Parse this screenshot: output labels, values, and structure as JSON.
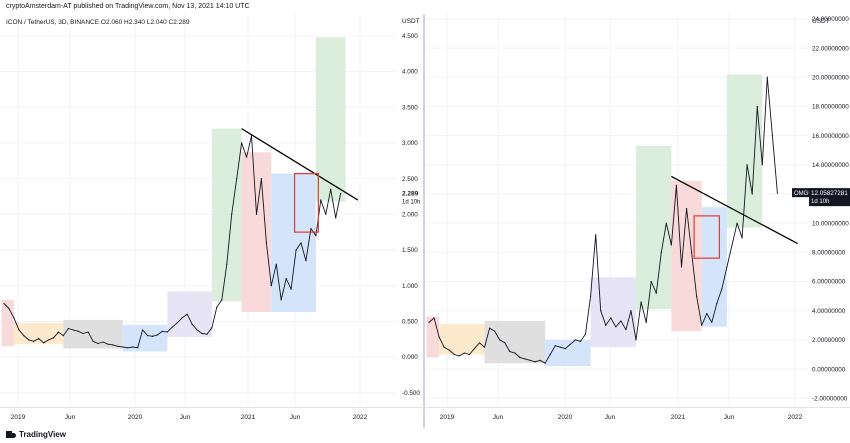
{
  "header": {
    "text": "cryptoAmsterdam-AT published on TradingView.com, Nov 13, 2021 14:10 UTC"
  },
  "footer": {
    "brand": "TradingView"
  },
  "colors": {
    "line": "#131722",
    "grid": "#f0f3fa",
    "divider": "#d1d4dc",
    "orange": "#fde6c4",
    "gray": "#d9d9d9",
    "blue": "#cde0fa",
    "purple": "#e3dff5",
    "green": "#d4ebd5",
    "red": "#f8d3d3",
    "highlight": "#e53935",
    "trend": "#000000"
  },
  "chart_data": [
    {
      "type": "line",
      "title": "ICON / TetherUS, 3D, BINANCE",
      "ohlc": {
        "O": "2.060",
        "H": "2.340",
        "L": "2.040",
        "C": "2.289"
      },
      "currency": "USDT",
      "ylim": [
        -0.7,
        4.75
      ],
      "yticks": [
        "4.500",
        "4.000",
        "3.500",
        "3.000",
        "2.500",
        "2.000",
        "1.500",
        "1.000",
        "0.500",
        "0.000",
        "-0.500"
      ],
      "xticks": [
        "2019",
        "Jun",
        "2020",
        "Jun",
        "2021",
        "Jun",
        "2022"
      ],
      "last_price": {
        "value": "2.289",
        "countdown": "1d 10h"
      },
      "series": [
        {
          "values": [
            [
              0,
              0.75
            ],
            [
              1,
              0.68
            ],
            [
              2,
              0.55
            ],
            [
              3,
              0.38
            ],
            [
              4,
              0.3
            ],
            [
              5,
              0.24
            ],
            [
              6,
              0.22
            ],
            [
              7,
              0.26
            ],
            [
              8,
              0.2
            ],
            [
              9,
              0.24
            ],
            [
              10,
              0.27
            ],
            [
              11,
              0.35
            ],
            [
              12,
              0.3
            ],
            [
              13,
              0.4
            ],
            [
              14,
              0.38
            ],
            [
              15,
              0.36
            ],
            [
              16,
              0.33
            ],
            [
              17,
              0.35
            ],
            [
              18,
              0.22
            ],
            [
              19,
              0.19
            ],
            [
              20,
              0.21
            ],
            [
              21,
              0.18
            ],
            [
              22,
              0.17
            ],
            [
              23,
              0.15
            ],
            [
              24,
              0.14
            ],
            [
              25,
              0.13
            ],
            [
              26,
              0.14
            ],
            [
              27,
              0.13
            ],
            [
              28,
              0.38
            ],
            [
              29,
              0.3
            ],
            [
              30,
              0.29
            ],
            [
              31,
              0.31
            ],
            [
              32,
              0.36
            ],
            [
              33,
              0.35
            ],
            [
              34,
              0.42
            ],
            [
              35,
              0.48
            ],
            [
              36,
              0.55
            ],
            [
              37,
              0.6
            ],
            [
              38,
              0.46
            ],
            [
              39,
              0.38
            ],
            [
              40,
              0.33
            ],
            [
              41,
              0.32
            ],
            [
              42,
              0.41
            ],
            [
              43,
              0.7
            ],
            [
              44,
              0.8
            ],
            [
              45,
              1.3
            ],
            [
              46,
              2.0
            ],
            [
              47,
              2.5
            ],
            [
              48,
              3.0
            ],
            [
              49,
              2.8
            ],
            [
              50,
              3.1
            ],
            [
              51,
              2.0
            ],
            [
              52,
              2.5
            ],
            [
              53,
              1.6
            ],
            [
              54,
              1.0
            ],
            [
              55,
              1.3
            ],
            [
              56,
              0.8
            ],
            [
              57,
              1.1
            ],
            [
              58,
              0.95
            ],
            [
              59,
              1.5
            ],
            [
              60,
              1.6
            ],
            [
              61,
              1.35
            ],
            [
              62,
              1.8
            ],
            [
              63,
              1.7
            ],
            [
              64,
              2.2
            ],
            [
              65,
              2.0
            ],
            [
              66,
              2.35
            ],
            [
              67,
              1.95
            ],
            [
              68,
              2.29
            ]
          ]
        }
      ],
      "trendline": [
        [
          48,
          3.2
        ],
        [
          71.5,
          2.2
        ]
      ],
      "zones": [
        {
          "x": [
            -0.5,
            2
          ],
          "y": [
            0.15,
            0.8
          ],
          "color": "red"
        },
        {
          "x": [
            2,
            12
          ],
          "y": [
            0.18,
            0.48
          ],
          "color": "orange"
        },
        {
          "x": [
            12,
            24
          ],
          "y": [
            0.12,
            0.52
          ],
          "color": "gray"
        },
        {
          "x": [
            24,
            33
          ],
          "y": [
            0.08,
            0.45
          ],
          "color": "blue"
        },
        {
          "x": [
            33,
            42
          ],
          "y": [
            0.28,
            0.92
          ],
          "color": "purple"
        },
        {
          "x": [
            42,
            48
          ],
          "y": [
            0.78,
            3.2
          ],
          "color": "green"
        },
        {
          "x": [
            48,
            54
          ],
          "y": [
            0.63,
            2.87
          ],
          "color": "red"
        },
        {
          "x": [
            54,
            63
          ],
          "y": [
            0.63,
            2.57
          ],
          "color": "blue"
        },
        {
          "x": [
            63,
            69
          ],
          "y": [
            2.18,
            4.48
          ],
          "color": "green"
        }
      ],
      "highlight_box": {
        "x": [
          58.7,
          63.5
        ],
        "y": [
          1.75,
          2.57
        ]
      }
    },
    {
      "type": "line",
      "title": "",
      "currency": "USDT",
      "ylim": [
        -2.6,
        24.2
      ],
      "yticks": [
        "24.00000000",
        "22.00000000",
        "20.00000000",
        "18.00000000",
        "16.00000000",
        "14.00000000",
        "12.00000000",
        "10.00000000",
        "8.00000000",
        "6.00000000",
        "4.00000000",
        "2.00000000",
        "0.00000000",
        "-2.00000000"
      ],
      "xticks": [
        "2019",
        "Jun",
        "2020",
        "Jun",
        "2021",
        "Jun",
        "2022"
      ],
      "last_price": {
        "value": "12.05827281",
        "symbol": "OMGUSDT",
        "countdown": "1d 10h"
      },
      "series": [
        {
          "values": [
            [
              0,
              3.2
            ],
            [
              1,
              3.5
            ],
            [
              2,
              2.2
            ],
            [
              3,
              1.5
            ],
            [
              4,
              1.3
            ],
            [
              5,
              1.0
            ],
            [
              6,
              0.9
            ],
            [
              7,
              1.1
            ],
            [
              8,
              1.0
            ],
            [
              9,
              1.4
            ],
            [
              10,
              1.8
            ],
            [
              11,
              1.5
            ],
            [
              12,
              2.8
            ],
            [
              13,
              2.6
            ],
            [
              14,
              2.0
            ],
            [
              15,
              1.8
            ],
            [
              16,
              1.2
            ],
            [
              17,
              1.1
            ],
            [
              18,
              0.8
            ],
            [
              19,
              0.7
            ],
            [
              20,
              0.6
            ],
            [
              21,
              0.5
            ],
            [
              22,
              0.6
            ],
            [
              23,
              0.4
            ],
            [
              24,
              1.0
            ],
            [
              25,
              1.6
            ],
            [
              26,
              1.5
            ],
            [
              27,
              1.4
            ],
            [
              28,
              1.7
            ],
            [
              29,
              2.0
            ],
            [
              30,
              1.9
            ],
            [
              31,
              2.4
            ],
            [
              32,
              5.0
            ],
            [
              33,
              9.2
            ],
            [
              34,
              4.0
            ],
            [
              35,
              3.0
            ],
            [
              36,
              3.5
            ],
            [
              37,
              2.9
            ],
            [
              38,
              3.3
            ],
            [
              39,
              2.7
            ],
            [
              40,
              4.0
            ],
            [
              41,
              2.0
            ],
            [
              42,
              4.6
            ],
            [
              43,
              3.2
            ],
            [
              44,
              6.0
            ],
            [
              45,
              5.2
            ],
            [
              46,
              8.0
            ],
            [
              47,
              10.0
            ],
            [
              48,
              8.5
            ],
            [
              49,
              12.6
            ],
            [
              50,
              7.0
            ],
            [
              51,
              11.0
            ],
            [
              52,
              8.0
            ],
            [
              53,
              5.0
            ],
            [
              54,
              3.0
            ],
            [
              55,
              3.8
            ],
            [
              56,
              3.2
            ],
            [
              57,
              4.5
            ],
            [
              58,
              5.5
            ],
            [
              59,
              7.0
            ],
            [
              60,
              8.5
            ],
            [
              61,
              10.0
            ],
            [
              62,
              9.0
            ],
            [
              63,
              14.0
            ],
            [
              64,
              12.0
            ],
            [
              65,
              18.0
            ],
            [
              66,
              14.0
            ],
            [
              67,
              20.0
            ],
            [
              68,
              16.0
            ],
            [
              69,
              12.06
            ]
          ]
        }
      ],
      "trendline": [
        [
          48,
          13.2
        ],
        [
          73,
          8.6
        ]
      ],
      "zones": [
        {
          "x": [
            -0.5,
            2
          ],
          "y": [
            0.8,
            3.6
          ],
          "color": "red"
        },
        {
          "x": [
            2,
            11
          ],
          "y": [
            1.0,
            3.1
          ],
          "color": "orange"
        },
        {
          "x": [
            11,
            23
          ],
          "y": [
            0.4,
            3.3
          ],
          "color": "gray"
        },
        {
          "x": [
            23,
            32
          ],
          "y": [
            0.2,
            2.0
          ],
          "color": "blue"
        },
        {
          "x": [
            32,
            41
          ],
          "y": [
            1.5,
            6.3
          ],
          "color": "purple"
        },
        {
          "x": [
            41,
            48
          ],
          "y": [
            4.1,
            15.3
          ],
          "color": "green"
        },
        {
          "x": [
            48,
            54
          ],
          "y": [
            2.6,
            12.9
          ],
          "color": "red"
        },
        {
          "x": [
            54,
            59
          ],
          "y": [
            2.9,
            11.1
          ],
          "color": "blue"
        },
        {
          "x": [
            59,
            66
          ],
          "y": [
            9.7,
            20.2
          ],
          "color": "green"
        }
      ],
      "highlight_box": {
        "x": [
          52.5,
          57.5
        ],
        "y": [
          7.6,
          10.5
        ]
      }
    }
  ]
}
